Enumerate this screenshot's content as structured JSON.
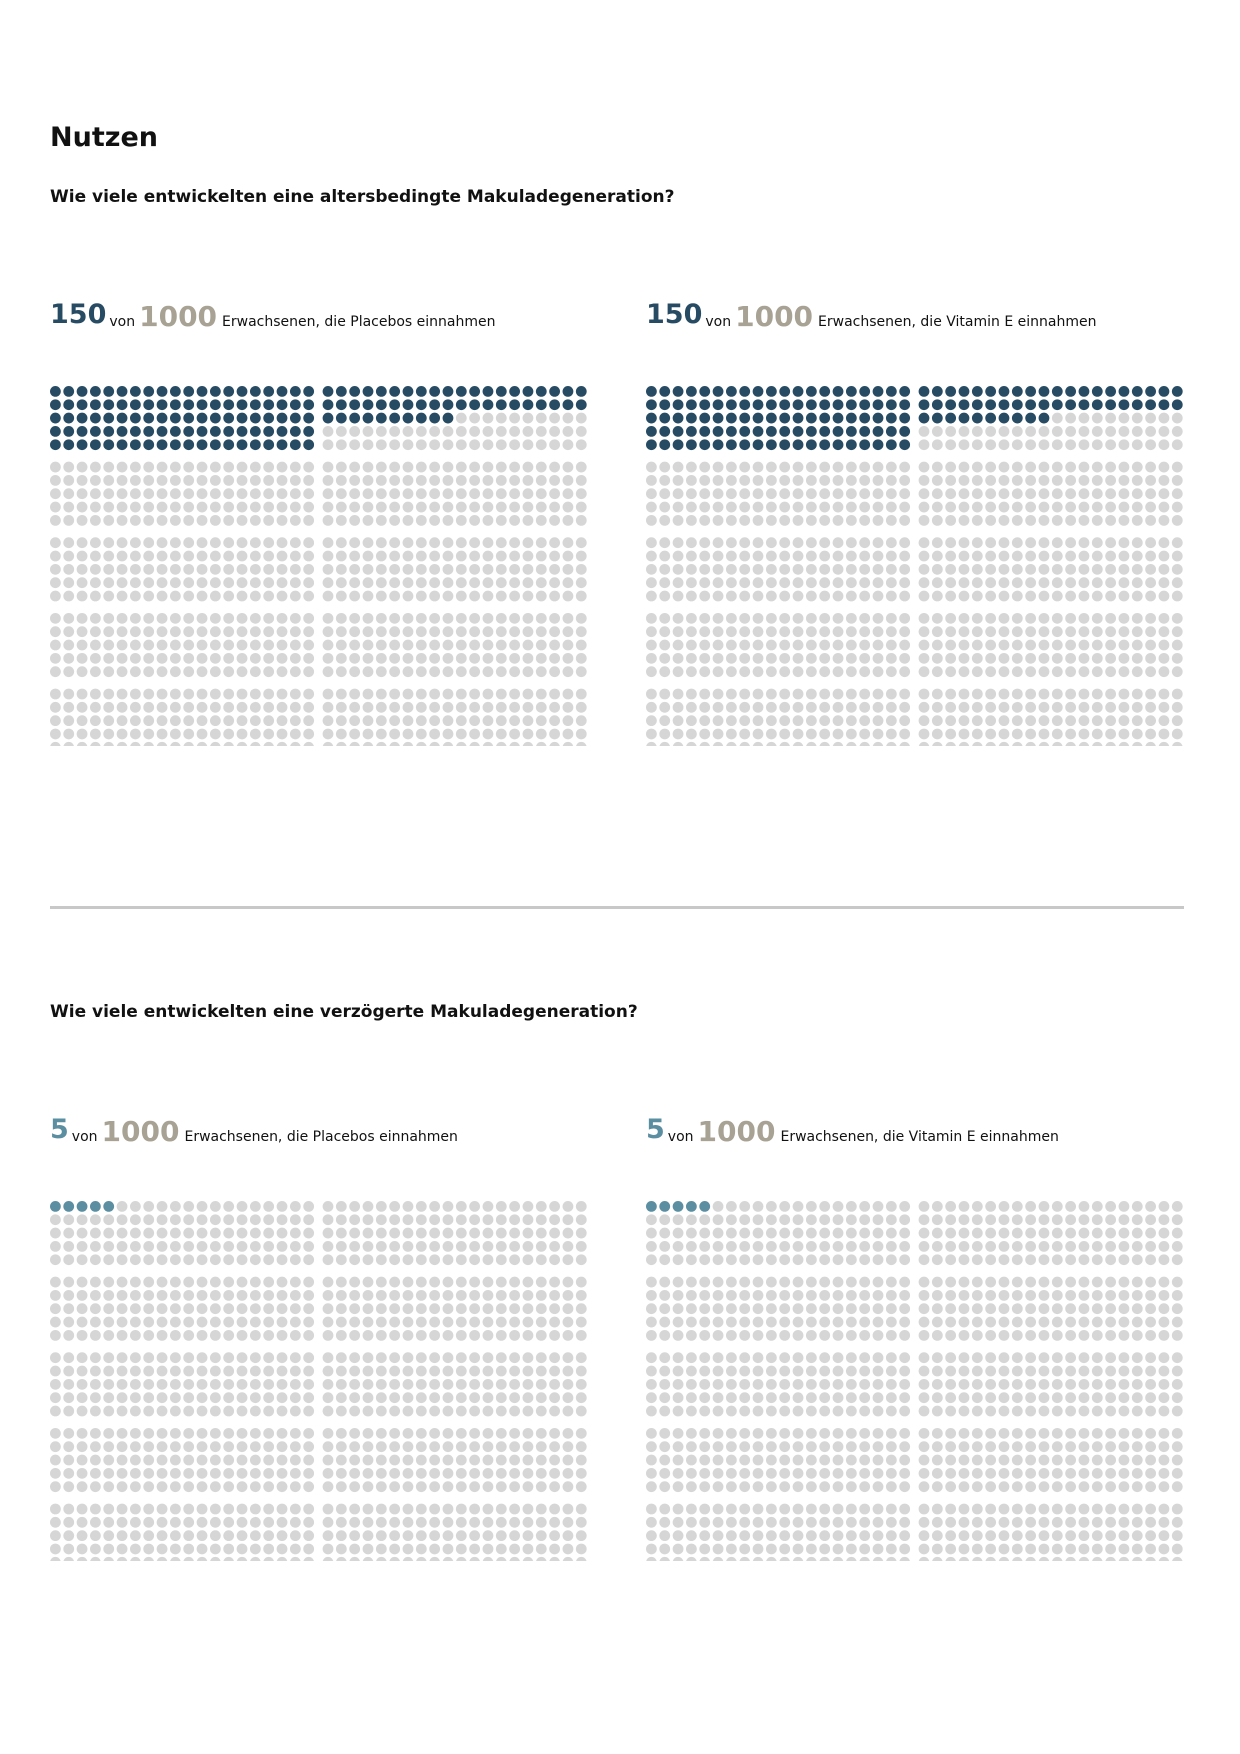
{
  "title": "Nutzen",
  "colors": {
    "section1_highlight": "#274b63",
    "section2_highlight": "#5a8ea0",
    "dot_inactive": "#d6d6d6",
    "total_number": "#a8a294"
  },
  "sections": [
    {
      "question": "Wie viele entwickelten eine altersbedingte Makuladegeneration?",
      "panels": [
        {
          "count": "150",
          "of_label": "von",
          "total": "1000",
          "description": "Erwachsenen, die Placebos einnahmen"
        },
        {
          "count": "150",
          "of_label": "von",
          "total": "1000",
          "description": "Erwachsenen, die Vitamin E einnahmen"
        }
      ]
    },
    {
      "question": "Wie viele entwickelten eine verzögerte Makuladegeneration?",
      "panels": [
        {
          "count": "5",
          "of_label": "von",
          "total": "1000",
          "description": "Erwachsenen, die Placebos einnahmen"
        },
        {
          "count": "5",
          "of_label": "von",
          "total": "1000",
          "description": "Erwachsenen, die Vitamin E einnahmen"
        }
      ]
    }
  ],
  "chart_data": [
    {
      "type": "waffle",
      "highlighted": 150,
      "total": 1000
    },
    {
      "type": "waffle",
      "highlighted": 150,
      "total": 1000
    },
    {
      "type": "waffle",
      "highlighted": 5,
      "total": 1000
    },
    {
      "type": "waffle",
      "highlighted": 5,
      "total": 1000
    }
  ]
}
